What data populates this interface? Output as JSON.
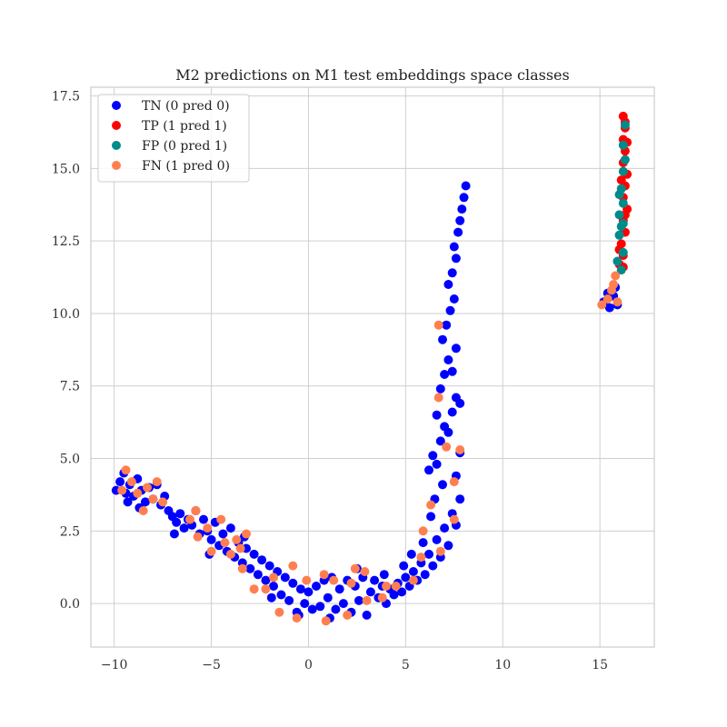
{
  "chart_data": {
    "type": "scatter",
    "title": "M2 predictions on M1 test embeddings space classes",
    "xlabel": "",
    "ylabel": "",
    "xlim": [
      -11.2,
      17.8
    ],
    "ylim": [
      -1.5,
      17.8
    ],
    "xticks": [
      -10,
      -5,
      0,
      5,
      10,
      15
    ],
    "xtick_labels": [
      "−10",
      "−5",
      "0",
      "5",
      "10",
      "15"
    ],
    "yticks": [
      0.0,
      2.5,
      5.0,
      7.5,
      10.0,
      12.5,
      15.0,
      17.5
    ],
    "ytick_labels": [
      "0.0",
      "2.5",
      "5.0",
      "7.5",
      "10.0",
      "12.5",
      "15.0",
      "17.5"
    ],
    "grid": true,
    "legend_position": "top-left",
    "series": [
      {
        "name": "TN (0 pred 0)",
        "color": "#0000ff",
        "points": [
          [
            -9.9,
            3.9
          ],
          [
            -9.7,
            4.2
          ],
          [
            -9.5,
            4.5
          ],
          [
            -9.4,
            3.8
          ],
          [
            -9.2,
            4.1
          ],
          [
            -9.0,
            3.7
          ],
          [
            -8.8,
            4.3
          ],
          [
            -8.6,
            3.9
          ],
          [
            -8.4,
            3.5
          ],
          [
            -8.2,
            4.0
          ],
          [
            -8.0,
            3.6
          ],
          [
            -7.8,
            4.1
          ],
          [
            -7.6,
            3.4
          ],
          [
            -7.4,
            3.7
          ],
          [
            -7.2,
            3.2
          ],
          [
            -7.0,
            3.0
          ],
          [
            -6.8,
            2.8
          ],
          [
            -6.6,
            3.1
          ],
          [
            -6.4,
            2.6
          ],
          [
            -6.2,
            2.9
          ],
          [
            -6.0,
            2.7
          ],
          [
            -5.8,
            3.2
          ],
          [
            -5.6,
            2.4
          ],
          [
            -5.4,
            2.9
          ],
          [
            -5.2,
            2.5
          ],
          [
            -5.0,
            2.2
          ],
          [
            -4.8,
            2.8
          ],
          [
            -4.6,
            2.0
          ],
          [
            -4.4,
            2.4
          ],
          [
            -4.2,
            1.8
          ],
          [
            -4.0,
            2.6
          ],
          [
            -3.8,
            1.6
          ],
          [
            -3.6,
            2.1
          ],
          [
            -3.4,
            1.4
          ],
          [
            -3.2,
            1.9
          ],
          [
            -3.0,
            1.2
          ],
          [
            -2.8,
            1.7
          ],
          [
            -2.6,
            1.0
          ],
          [
            -2.4,
            1.5
          ],
          [
            -2.2,
            0.8
          ],
          [
            -2.0,
            1.3
          ],
          [
            -1.8,
            0.6
          ],
          [
            -1.6,
            1.1
          ],
          [
            -1.4,
            0.3
          ],
          [
            -1.2,
            0.9
          ],
          [
            -1.0,
            0.1
          ],
          [
            -0.8,
            0.7
          ],
          [
            -0.6,
            -0.3
          ],
          [
            -0.4,
            0.5
          ],
          [
            -0.2,
            0.0
          ],
          [
            0.0,
            0.4
          ],
          [
            0.2,
            -0.2
          ],
          [
            0.4,
            0.6
          ],
          [
            0.6,
            -0.1
          ],
          [
            0.8,
            0.8
          ],
          [
            1.0,
            0.2
          ],
          [
            1.2,
            0.9
          ],
          [
            1.4,
            -0.2
          ],
          [
            1.6,
            0.5
          ],
          [
            1.8,
            0.0
          ],
          [
            2.0,
            0.8
          ],
          [
            2.2,
            -0.3
          ],
          [
            2.4,
            0.6
          ],
          [
            2.6,
            0.1
          ],
          [
            2.8,
            0.9
          ],
          [
            3.0,
            -0.4
          ],
          [
            3.2,
            0.4
          ],
          [
            3.4,
            0.8
          ],
          [
            3.6,
            0.2
          ],
          [
            3.8,
            0.6
          ],
          [
            4.0,
            0.0
          ],
          [
            4.2,
            0.5
          ],
          [
            4.4,
            0.3
          ],
          [
            4.6,
            0.7
          ],
          [
            4.8,
            0.4
          ],
          [
            5.0,
            0.9
          ],
          [
            5.2,
            0.6
          ],
          [
            5.4,
            1.1
          ],
          [
            5.6,
            0.8
          ],
          [
            5.8,
            1.4
          ],
          [
            6.0,
            1.0
          ],
          [
            6.2,
            1.7
          ],
          [
            6.4,
            1.3
          ],
          [
            6.6,
            2.2
          ],
          [
            6.8,
            1.6
          ],
          [
            7.0,
            2.6
          ],
          [
            7.2,
            2.0
          ],
          [
            7.4,
            3.1
          ],
          [
            7.6,
            2.7
          ],
          [
            7.8,
            3.6
          ],
          [
            6.2,
            4.6
          ],
          [
            6.4,
            5.1
          ],
          [
            6.6,
            4.8
          ],
          [
            6.8,
            5.6
          ],
          [
            7.0,
            6.1
          ],
          [
            7.2,
            5.9
          ],
          [
            7.4,
            6.6
          ],
          [
            7.6,
            7.1
          ],
          [
            7.8,
            6.9
          ],
          [
            6.6,
            6.5
          ],
          [
            6.8,
            7.4
          ],
          [
            7.0,
            7.9
          ],
          [
            7.2,
            8.4
          ],
          [
            7.4,
            8.0
          ],
          [
            7.6,
            8.8
          ],
          [
            6.9,
            9.1
          ],
          [
            7.1,
            9.6
          ],
          [
            7.3,
            10.1
          ],
          [
            7.5,
            10.5
          ],
          [
            7.2,
            11.0
          ],
          [
            7.4,
            11.4
          ],
          [
            7.6,
            11.9
          ],
          [
            7.5,
            12.3
          ],
          [
            7.7,
            12.8
          ],
          [
            7.8,
            13.2
          ],
          [
            7.9,
            13.6
          ],
          [
            8.0,
            14.0
          ],
          [
            8.1,
            14.4
          ],
          [
            6.5,
            3.6
          ],
          [
            5.9,
            2.1
          ],
          [
            5.3,
            1.7
          ],
          [
            4.9,
            1.3
          ],
          [
            6.3,
            3.0
          ],
          [
            6.9,
            4.1
          ],
          [
            7.6,
            4.4
          ],
          [
            7.8,
            5.2
          ],
          [
            -9.3,
            3.5
          ],
          [
            -8.7,
            3.3
          ],
          [
            -6.9,
            2.4
          ],
          [
            -5.1,
            1.7
          ],
          [
            -3.3,
            2.3
          ],
          [
            -1.9,
            0.2
          ],
          [
            -0.5,
            -0.4
          ],
          [
            1.1,
            -0.5
          ],
          [
            2.5,
            1.2
          ],
          [
            3.9,
            1.0
          ],
          [
            15.2,
            10.4
          ],
          [
            15.5,
            10.2
          ],
          [
            15.7,
            10.6
          ],
          [
            15.9,
            10.3
          ],
          [
            15.4,
            10.7
          ],
          [
            15.8,
            10.9
          ]
        ]
      },
      {
        "name": "TP (1 pred 1)",
        "color": "#ff0000",
        "points": [
          [
            16.2,
            16.8
          ],
          [
            16.3,
            16.4
          ],
          [
            16.2,
            16.0
          ],
          [
            16.3,
            15.6
          ],
          [
            16.2,
            15.2
          ],
          [
            16.4,
            14.8
          ],
          [
            16.3,
            14.4
          ],
          [
            16.2,
            14.0
          ],
          [
            16.4,
            13.6
          ],
          [
            16.2,
            13.2
          ],
          [
            16.3,
            12.8
          ],
          [
            16.1,
            12.4
          ],
          [
            16.2,
            12.0
          ],
          [
            16.0,
            11.7
          ],
          [
            16.3,
            16.6
          ],
          [
            16.4,
            15.9
          ],
          [
            16.1,
            14.6
          ],
          [
            16.3,
            13.4
          ],
          [
            16.0,
            12.2
          ],
          [
            16.2,
            11.6
          ]
        ]
      },
      {
        "name": "FP (0 pred 1)",
        "color": "#008b8b",
        "points": [
          [
            16.3,
            16.5
          ],
          [
            16.2,
            15.8
          ],
          [
            16.3,
            15.3
          ],
          [
            16.2,
            14.9
          ],
          [
            16.1,
            14.3
          ],
          [
            16.2,
            13.8
          ],
          [
            16.0,
            13.4
          ],
          [
            16.1,
            13.0
          ],
          [
            16.0,
            12.7
          ],
          [
            16.2,
            12.1
          ],
          [
            15.9,
            11.8
          ],
          [
            16.1,
            11.5
          ],
          [
            16.0,
            14.1
          ],
          [
            16.2,
            13.1
          ]
        ]
      },
      {
        "name": "FN (1 pred 0)",
        "color": "#ff7f50",
        "points": [
          [
            -9.4,
            4.6
          ],
          [
            -9.6,
            3.9
          ],
          [
            -9.1,
            4.2
          ],
          [
            -8.8,
            3.8
          ],
          [
            -8.5,
            3.2
          ],
          [
            -8.3,
            4.0
          ],
          [
            -8.0,
            3.6
          ],
          [
            -7.8,
            4.2
          ],
          [
            -7.5,
            3.5
          ],
          [
            -6.1,
            2.9
          ],
          [
            -5.8,
            3.2
          ],
          [
            -5.7,
            2.3
          ],
          [
            -5.2,
            2.6
          ],
          [
            -5.0,
            1.8
          ],
          [
            -4.5,
            2.9
          ],
          [
            -4.3,
            2.1
          ],
          [
            -4.0,
            1.7
          ],
          [
            -3.7,
            2.2
          ],
          [
            -3.5,
            1.9
          ],
          [
            -3.2,
            2.4
          ],
          [
            -3.4,
            1.2
          ],
          [
            -2.8,
            0.5
          ],
          [
            -2.2,
            0.5
          ],
          [
            -1.8,
            0.9
          ],
          [
            -1.5,
            -0.3
          ],
          [
            -0.8,
            1.3
          ],
          [
            -0.6,
            -0.5
          ],
          [
            -0.1,
            0.8
          ],
          [
            0.9,
            -0.6
          ],
          [
            0.8,
            1.0
          ],
          [
            1.3,
            0.8
          ],
          [
            2.0,
            -0.4
          ],
          [
            2.2,
            0.7
          ],
          [
            2.4,
            1.2
          ],
          [
            3.0,
            0.1
          ],
          [
            2.9,
            1.1
          ],
          [
            3.8,
            0.2
          ],
          [
            4.5,
            0.6
          ],
          [
            5.4,
            0.8
          ],
          [
            5.8,
            1.6
          ],
          [
            6.3,
            3.4
          ],
          [
            5.9,
            2.5
          ],
          [
            6.8,
            1.8
          ],
          [
            7.5,
            2.9
          ],
          [
            7.5,
            4.2
          ],
          [
            6.7,
            7.1
          ],
          [
            6.7,
            9.6
          ],
          [
            7.1,
            5.4
          ],
          [
            7.8,
            5.3
          ],
          [
            4.0,
            0.6
          ],
          [
            15.1,
            10.3
          ],
          [
            15.4,
            10.5
          ],
          [
            15.6,
            10.8
          ],
          [
            15.8,
            11.3
          ],
          [
            15.9,
            10.4
          ],
          [
            15.7,
            11.0
          ]
        ]
      }
    ]
  }
}
